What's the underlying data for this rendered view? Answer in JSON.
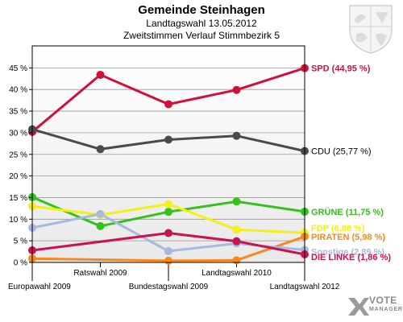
{
  "header": {
    "title": "Gemeinde Steinhagen",
    "subtitle1": "Landtagswahl 13.05.2012",
    "subtitle2": "Zweitstimmen Verlauf Stimmbezirk 5"
  },
  "branding": {
    "logo_line1": "VOTE",
    "logo_line2": "MANAGER"
  },
  "chart_data": {
    "type": "line",
    "title": "Gemeinde Steinhagen",
    "subtitle": "Landtagswahl 13.05.2012 — Zweitstimmen Verlauf Stimmbezirk 5",
    "categories": [
      "Europawahl 2009",
      "Ratswahl 2009",
      "Bundestagswahl 2009",
      "Landtagswahl 2010",
      "Landtagswahl 2012"
    ],
    "ylim": [
      0,
      48
    ],
    "yticks": [
      0,
      5,
      10,
      15,
      20,
      25,
      30,
      35,
      40,
      45
    ],
    "ytick_labels": [
      "0 %",
      "5 %",
      "10 %",
      "15 %",
      "20 %",
      "25 %",
      "30 %",
      "35 %",
      "40 %",
      "45 %"
    ],
    "grid": true,
    "series": [
      {
        "name": "SPD",
        "label": "SPD (44,95 %)",
        "color": "#d0103a",
        "values": [
          30.2,
          43.4,
          36.6,
          39.9,
          44.95
        ]
      },
      {
        "name": "CDU",
        "label": "CDU (25,77 %)",
        "color": "#4a4a4a",
        "values": [
          30.8,
          26.2,
          28.4,
          29.3,
          25.77
        ]
      },
      {
        "name": "GRÜNE",
        "label": "GRÜNE (11,75 %)",
        "color": "#33c21a",
        "values": [
          15.1,
          8.4,
          11.7,
          14.1,
          11.75
        ]
      },
      {
        "name": "FDP",
        "label": "FDP (6,86 %)",
        "color": "#f5f013",
        "values": [
          13.0,
          11.0,
          13.5,
          7.6,
          6.86
        ]
      },
      {
        "name": "PIRATEN",
        "label": "PIRATEN (5,98 %)",
        "color": "#f5891f",
        "values": [
          0.9,
          null,
          0.4,
          0.5,
          5.98
        ]
      },
      {
        "name": "Sonstige",
        "label": "Sonstige (2,89 %)",
        "color": "#a9b8dd",
        "values": [
          8.0,
          11.2,
          2.6,
          4.4,
          2.89
        ]
      },
      {
        "name": "DIE LINKE",
        "label": "DIE LINKE (1,86 %)",
        "color": "#c8134f",
        "values": [
          2.8,
          null,
          6.8,
          4.9,
          1.86
        ]
      }
    ]
  }
}
